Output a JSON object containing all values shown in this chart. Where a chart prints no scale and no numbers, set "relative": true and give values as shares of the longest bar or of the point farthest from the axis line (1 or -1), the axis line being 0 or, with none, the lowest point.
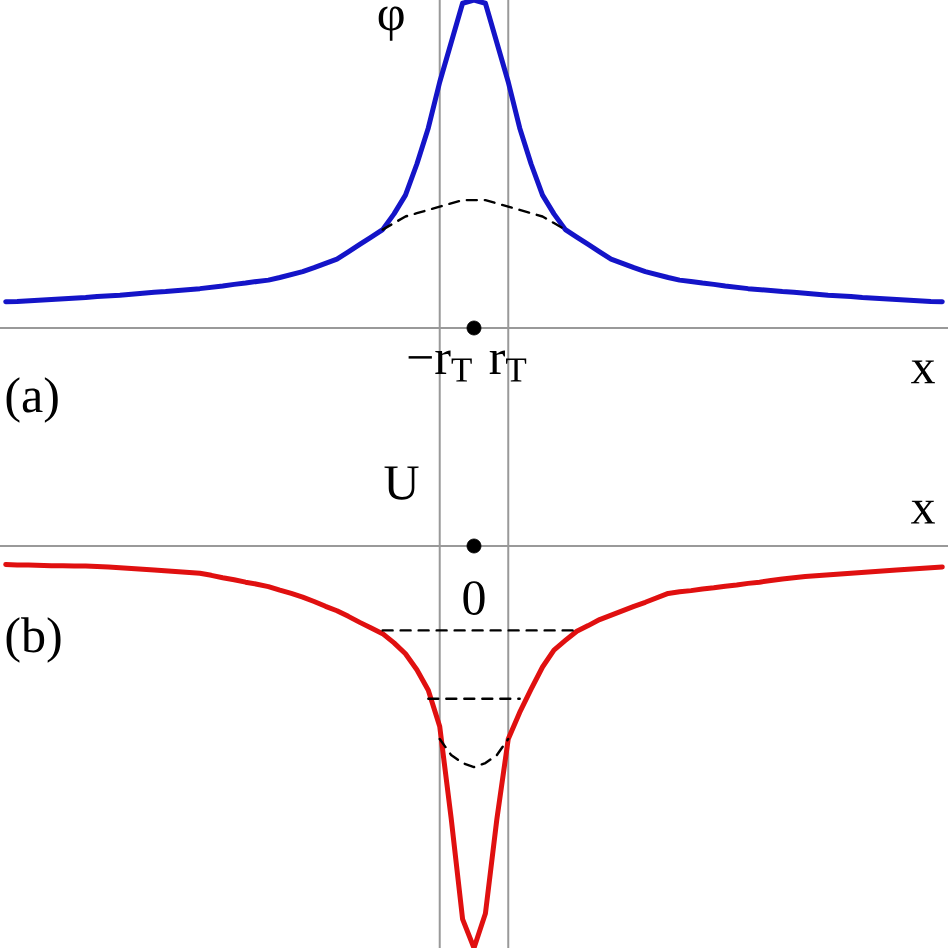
{
  "chart_data": [
    {
      "type": "line",
      "ylabel": "φ",
      "xlabel": "x",
      "annotations": [
        "(a)"
      ],
      "relative": true,
      "grid": "x",
      "categories": [
        null,
        null,
        null,
        null,
        null,
        null,
        null,
        null,
        null,
        null,
        null,
        null,
        null,
        null,
        null,
        null,
        null,
        null,
        null,
        null,
        null,
        null,
        null,
        null,
        null,
        null,
        null,
        null,
        null,
        null,
        null,
        null,
        null,
        null,
        null,
        null,
        null,
        null,
        "−r$_{T}$",
        null,
        null,
        null,
        null,
        null,
        "r$_{T}$",
        null,
        null,
        null,
        null,
        null,
        null,
        null,
        null,
        null,
        null,
        null,
        null,
        null,
        null,
        null,
        null,
        null,
        null,
        null,
        null,
        null,
        null,
        null,
        null,
        null,
        null,
        null,
        null,
        null,
        null,
        null,
        null,
        null,
        null,
        null,
        null,
        null,
        null
      ],
      "series": [
        {
          "color": "#1414c8",
          "values": [
            0.08,
            0.081,
            0.083,
            0.085,
            0.087,
            0.089,
            0.091,
            0.093,
            0.096,
            0.098,
            0.1,
            0.103,
            0.106,
            0.109,
            0.111,
            0.114,
            0.117,
            0.12,
            0.124,
            0.128,
            0.133,
            0.137,
            0.142,
            0.146,
            0.154,
            0.163,
            0.172,
            0.184,
            0.197,
            0.21,
            0.232,
            0.255,
            0.277,
            0.3,
            0.348,
            0.405,
            0.5,
            0.61,
            0.75,
            0.87,
            0.99,
            1,
            0.99,
            0.87,
            0.75,
            0.61,
            0.5,
            0.405,
            0.348,
            0.3,
            0.277,
            0.255,
            0.232,
            0.21,
            0.197,
            0.184,
            0.172,
            0.163,
            0.154,
            0.146,
            0.142,
            0.137,
            0.133,
            0.128,
            0.124,
            0.12,
            0.117,
            0.114,
            0.111,
            0.109,
            0.106,
            0.103,
            0.1,
            0.098,
            0.096,
            0.093,
            0.091,
            0.089,
            0.087,
            0.085,
            0.083,
            0.081,
            0.08
          ]
        },
        {
          "color": "#000000",
          "line_style": "dashed",
          "values": [
            null,
            null,
            null,
            null,
            null,
            null,
            null,
            null,
            null,
            null,
            null,
            null,
            null,
            null,
            null,
            null,
            null,
            null,
            null,
            null,
            null,
            null,
            null,
            null,
            null,
            null,
            null,
            null,
            null,
            null,
            null,
            null,
            null,
            0.3,
            0.32,
            0.34,
            0.35,
            0.36,
            0.37,
            0.38,
            0.39,
            0.39,
            0.39,
            0.38,
            0.37,
            0.36,
            0.35,
            0.34,
            0.32,
            0.3,
            null,
            null,
            null,
            null,
            null,
            null,
            null,
            null,
            null,
            null,
            null,
            null,
            null,
            null,
            null,
            null,
            null,
            null,
            null,
            null,
            null,
            null,
            null,
            null,
            null,
            null,
            null,
            null,
            null,
            null,
            null,
            null,
            null
          ]
        },
        {
          "type": "scatter",
          "marker": "circle",
          "color": "#000000",
          "values": [
            null,
            null,
            null,
            null,
            null,
            null,
            null,
            null,
            null,
            null,
            null,
            null,
            null,
            null,
            null,
            null,
            null,
            null,
            null,
            null,
            null,
            null,
            null,
            null,
            null,
            null,
            null,
            null,
            null,
            null,
            null,
            null,
            null,
            null,
            null,
            null,
            null,
            null,
            null,
            null,
            null,
            0,
            null,
            null,
            null,
            null,
            null,
            null,
            null,
            null,
            null,
            null,
            null,
            null,
            null,
            null,
            null,
            null,
            null,
            null,
            null,
            null,
            null,
            null,
            null,
            null,
            null,
            null,
            null,
            null,
            null,
            null,
            null,
            null,
            null,
            null,
            null,
            null,
            null,
            null,
            null,
            null,
            null
          ]
        }
      ]
    },
    {
      "type": "line",
      "ylabel": "U",
      "xlabel": "x",
      "annotations": [
        "0",
        "(b)"
      ],
      "relative": true,
      "categories": [
        null,
        null,
        null,
        null,
        null,
        null,
        null,
        null,
        null,
        null,
        null,
        null,
        null,
        null,
        null,
        null,
        null,
        null,
        null,
        null,
        null,
        null,
        null,
        null,
        null,
        null,
        null,
        null,
        null,
        null,
        null,
        null,
        null,
        null,
        null,
        null,
        null,
        null,
        null,
        null,
        null,
        null,
        null,
        null,
        null,
        null,
        null,
        null,
        null,
        null,
        null,
        null,
        null,
        null,
        null,
        null,
        null,
        null,
        null,
        null,
        null,
        null,
        null,
        null,
        null,
        null,
        null,
        null,
        null,
        null,
        null,
        null,
        null,
        null,
        null,
        null,
        null,
        null,
        null,
        null,
        null,
        null,
        null
      ],
      "series": [
        {
          "color": "#e01010",
          "values": [
            -0.046,
            -0.047,
            -0.047,
            -0.048,
            -0.049,
            -0.049,
            -0.05,
            -0.05,
            -0.051,
            -0.052,
            -0.054,
            -0.056,
            -0.058,
            -0.06,
            -0.062,
            -0.064,
            -0.066,
            -0.068,
            -0.073,
            -0.079,
            -0.084,
            -0.09,
            -0.095,
            -0.101,
            -0.11,
            -0.118,
            -0.127,
            -0.138,
            -0.15,
            -0.161,
            -0.175,
            -0.19,
            -0.204,
            -0.218,
            -0.241,
            -0.268,
            -0.308,
            -0.359,
            -0.449,
            -0.677,
            -0.928,
            -1,
            -0.914,
            -0.68,
            -0.48,
            -0.414,
            -0.356,
            -0.301,
            -0.259,
            -0.235,
            -0.212,
            -0.198,
            -0.183,
            -0.172,
            -0.161,
            -0.15,
            -0.14,
            -0.129,
            -0.118,
            -0.114,
            -0.111,
            -0.107,
            -0.104,
            -0.1,
            -0.097,
            -0.093,
            -0.09,
            -0.086,
            -0.082,
            -0.079,
            -0.076,
            -0.074,
            -0.072,
            -0.07,
            -0.068,
            -0.066,
            -0.064,
            -0.062,
            -0.06,
            -0.058,
            -0.056,
            -0.054,
            -0.052
          ]
        },
        {
          "color": "#000000",
          "line_style": "dashed",
          "values": [
            null,
            null,
            null,
            null,
            null,
            null,
            null,
            null,
            null,
            null,
            null,
            null,
            null,
            null,
            null,
            null,
            null,
            null,
            null,
            null,
            null,
            null,
            null,
            null,
            null,
            null,
            null,
            null,
            null,
            null,
            null,
            null,
            null,
            null,
            null,
            null,
            null,
            null,
            -0.48,
            -0.52,
            -0.54,
            -0.55,
            -0.54,
            -0.52,
            -0.48,
            null,
            null,
            null,
            null,
            null,
            null,
            null,
            null,
            null,
            null,
            null,
            null,
            null,
            null,
            null,
            null,
            null,
            null,
            null,
            null,
            null,
            null,
            null,
            null,
            null,
            null,
            null,
            null,
            null,
            null,
            null,
            null,
            null,
            null,
            null,
            null,
            null,
            null
          ]
        },
        {
          "color": "#000000",
          "line_style": "dashed",
          "values": [
            null,
            null,
            null,
            null,
            null,
            null,
            null,
            null,
            null,
            null,
            null,
            null,
            null,
            null,
            null,
            null,
            null,
            null,
            null,
            null,
            null,
            null,
            null,
            null,
            null,
            null,
            null,
            null,
            null,
            null,
            null,
            null,
            null,
            -0.21,
            -0.21,
            -0.21,
            -0.21,
            -0.21,
            -0.21,
            -0.21,
            -0.21,
            -0.21,
            -0.21,
            -0.21,
            -0.21,
            -0.21,
            -0.21,
            -0.21,
            -0.21,
            -0.21,
            -0.21,
            null,
            null,
            null,
            null,
            null,
            null,
            null,
            null,
            null,
            null,
            null,
            null,
            null,
            null,
            null,
            null,
            null,
            null,
            null,
            null,
            null,
            null,
            null,
            null,
            null,
            null,
            null,
            null,
            null,
            null,
            null,
            null
          ]
        },
        {
          "color": "#000000",
          "line_style": "dashed",
          "values": [
            null,
            null,
            null,
            null,
            null,
            null,
            null,
            null,
            null,
            null,
            null,
            null,
            null,
            null,
            null,
            null,
            null,
            null,
            null,
            null,
            null,
            null,
            null,
            null,
            null,
            null,
            null,
            null,
            null,
            null,
            null,
            null,
            null,
            null,
            null,
            null,
            null,
            -0.38,
            -0.38,
            -0.38,
            -0.38,
            -0.38,
            -0.38,
            -0.38,
            -0.38,
            -0.38,
            null,
            null,
            null,
            null,
            null,
            null,
            null,
            null,
            null,
            null,
            null,
            null,
            null,
            null,
            null,
            null,
            null,
            null,
            null,
            null,
            null,
            null,
            null,
            null,
            null,
            null,
            null,
            null,
            null,
            null,
            null,
            null,
            null,
            null,
            null,
            null,
            null
          ]
        },
        {
          "type": "scatter",
          "marker": "circle",
          "color": "#000000",
          "values": [
            null,
            null,
            null,
            null,
            null,
            null,
            null,
            null,
            null,
            null,
            null,
            null,
            null,
            null,
            null,
            null,
            null,
            null,
            null,
            null,
            null,
            null,
            null,
            null,
            null,
            null,
            null,
            null,
            null,
            null,
            null,
            null,
            null,
            null,
            null,
            null,
            null,
            null,
            null,
            null,
            null,
            0,
            null,
            null,
            null,
            null,
            null,
            null,
            null,
            null,
            null,
            null,
            null,
            null,
            null,
            null,
            null,
            null,
            null,
            null,
            null,
            null,
            null,
            null,
            null,
            null,
            null,
            null,
            null,
            null,
            null,
            null,
            null,
            null,
            null,
            null,
            null,
            null,
            null,
            null,
            null,
            null,
            null
          ]
        }
      ]
    }
  ]
}
